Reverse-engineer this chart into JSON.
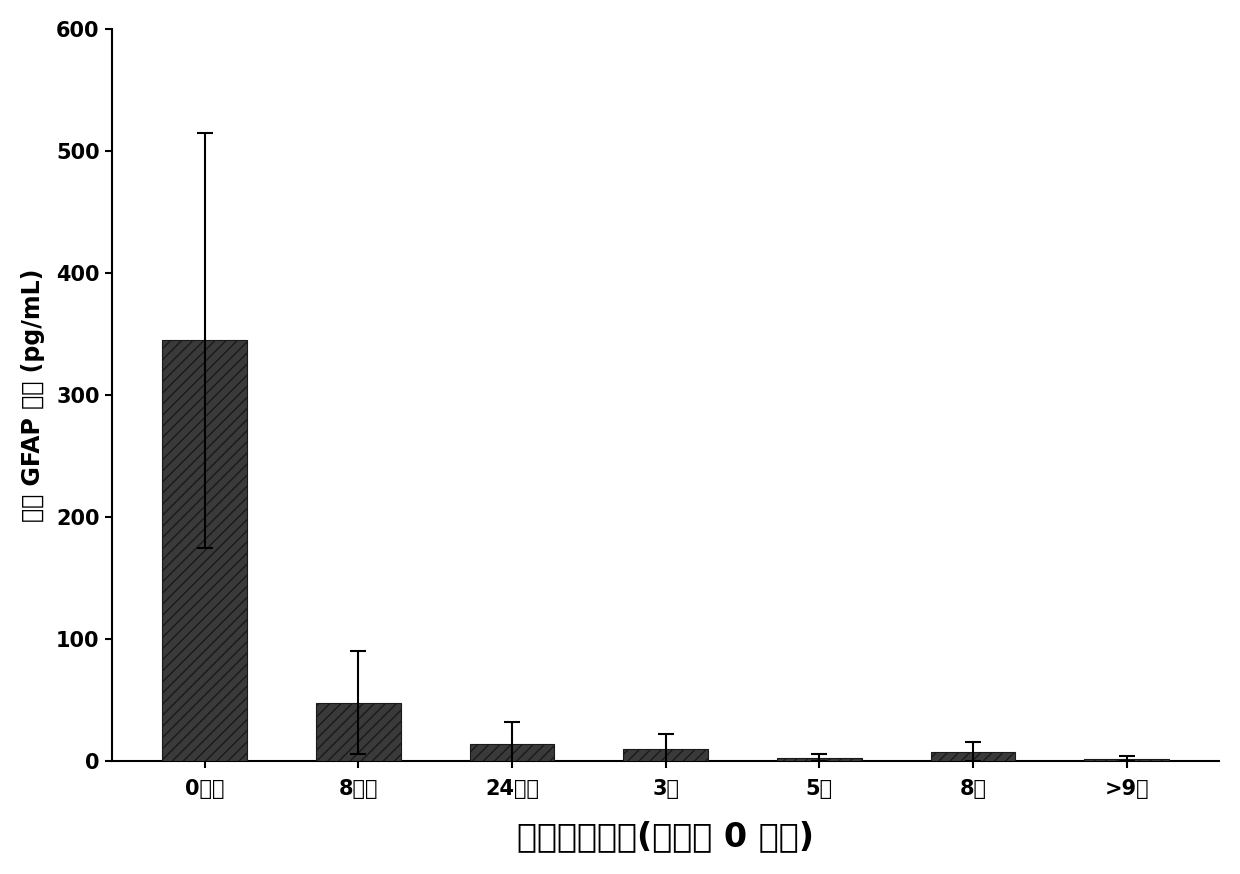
{
  "categories": [
    "0小时",
    "8小时",
    "24小时",
    "3天",
    "5天",
    "8天",
    ">9天"
  ],
  "values": [
    345,
    48,
    14,
    10,
    3,
    8,
    2
  ],
  "errors": [
    170,
    42,
    18,
    12,
    3,
    8,
    2
  ],
  "bar_color": "#3a3a3a",
  "bar_width": 0.55,
  "ylim": [
    0,
    600
  ],
  "yticks": [
    0,
    100,
    200,
    300,
    400,
    500,
    600
  ],
  "ylabel": "血清 GFAP 浓度 (pg/mL)",
  "xlabel": "样品采集时间(入院为 0 小时)",
  "ylabel_fontsize": 17,
  "xlabel_fontsize": 24,
  "tick_fontsize": 15,
  "background_color": "#ffffff",
  "plot_bg_color": "#ffffff"
}
